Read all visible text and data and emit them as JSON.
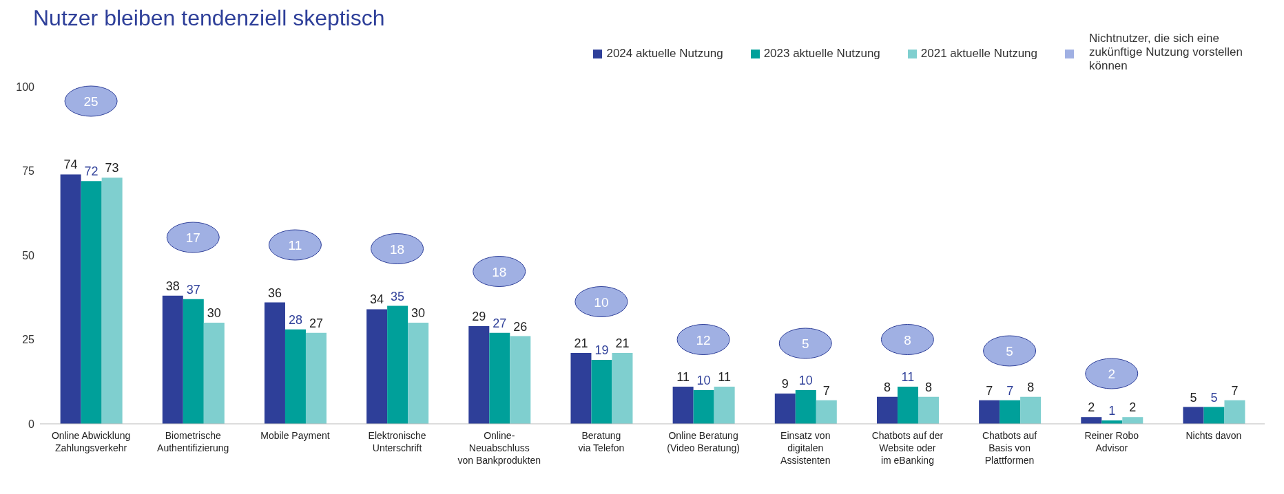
{
  "chart_data": {
    "type": "bar",
    "title": "Nutzer bleiben tendenziell skeptisch",
    "categories": [
      "Online Abwicklung\nZahlungsverkehr",
      "Biometrische\nAuthentifizierung",
      "Mobile Payment",
      "Elektronische\nUnterschrift",
      "Online-\nNeuabschluss\nvon Bankprodukten",
      "Beratung\nvia Telefon",
      "Online Beratung\n(Video Beratung)",
      "Einsatz von\ndigitalen\nAssistenten",
      "Chatbots auf der\nWebsite oder\nim eBanking",
      "Chatbots auf\nBasis von\nPlattformen",
      "Reiner Robo\nAdvisor",
      "Nichts davon"
    ],
    "series": [
      {
        "name": "2024 aktuelle Nutzung",
        "color": "#2e3f99",
        "values": [
          74,
          38,
          36,
          34,
          29,
          21,
          11,
          9,
          8,
          7,
          2,
          5
        ]
      },
      {
        "name": "2023 aktuelle Nutzung",
        "color": "#00a09a",
        "values": [
          72,
          37,
          28,
          35,
          27,
          19,
          10,
          10,
          11,
          7,
          1,
          5
        ]
      },
      {
        "name": "2021 aktuelle Nutzung",
        "color": "#7fcfcf",
        "values": [
          73,
          30,
          27,
          30,
          26,
          21,
          11,
          7,
          8,
          8,
          2,
          7
        ]
      }
    ],
    "annotations": [
      "Nichtnutzer, die sich eine zukünftige Nutzung vorstellen können",
      "25",
      "17",
      "11",
      "18",
      "18",
      "10",
      "12",
      "5",
      "8",
      "5",
      "2"
    ],
    "ylim": [
      0,
      100
    ],
    "yticks": [
      0,
      25,
      50,
      75,
      100
    ],
    "grid": false,
    "legend": "top right",
    "data_labels": true
  }
}
